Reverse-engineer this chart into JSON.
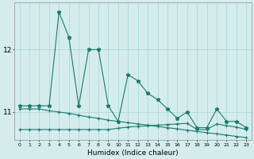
{
  "xlabel": "Humidex (Indice chaleur)",
  "x": [
    0,
    1,
    2,
    3,
    4,
    5,
    6,
    7,
    8,
    9,
    10,
    11,
    12,
    13,
    14,
    15,
    16,
    17,
    18,
    19,
    20,
    21,
    22,
    23
  ],
  "line1": [
    11.1,
    11.1,
    11.1,
    11.1,
    12.6,
    12.2,
    11.1,
    12.0,
    12.0,
    11.1,
    10.85,
    11.6,
    11.5,
    11.3,
    11.2,
    11.05,
    10.9,
    11.0,
    10.75,
    10.75,
    11.05,
    10.85,
    10.85,
    10.75
  ],
  "line2": [
    11.05,
    11.05,
    11.05,
    11.02,
    11.0,
    10.98,
    10.95,
    10.92,
    10.9,
    10.87,
    10.85,
    10.83,
    10.81,
    10.79,
    10.77,
    10.75,
    10.73,
    10.71,
    10.69,
    10.67,
    10.65,
    10.63,
    10.61,
    10.59
  ],
  "line3": [
    10.72,
    10.72,
    10.72,
    10.72,
    10.72,
    10.72,
    10.72,
    10.72,
    10.72,
    10.72,
    10.74,
    10.76,
    10.77,
    10.78,
    10.79,
    10.8,
    10.81,
    10.82,
    10.72,
    10.72,
    10.81,
    10.78,
    10.76,
    10.72
  ],
  "color": "#1a7a6e",
  "bg_color": "#d4ecec",
  "grid_color": "#a8d4d4",
  "yticks": [
    11,
    12
  ],
  "ylim": [
    10.55,
    12.75
  ],
  "xlim": [
    -0.5,
    23.5
  ]
}
